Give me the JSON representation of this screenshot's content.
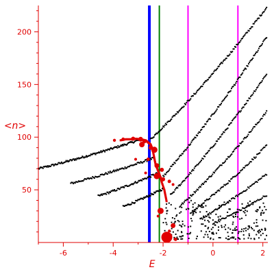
{
  "chart_data": {
    "type": "scatter",
    "title": "",
    "xlabel": "E",
    "ylabel": "<n>",
    "xlim": [
      -7.0,
      2.2
    ],
    "ylim": [
      0,
      225
    ],
    "x_ticks": [
      -6,
      -4,
      -2,
      0,
      2
    ],
    "y_ticks": [
      50,
      100,
      150,
      200
    ],
    "grid": false,
    "colors": {
      "axes": "#e00000",
      "black_points": "#000000",
      "red_points": "#e00000",
      "line_blue": "#0000ff",
      "line_green": "#008000",
      "line_magenta": "#ff00ff"
    },
    "vertical_lines": [
      {
        "x": -2.55,
        "color": "#0000ff",
        "width": 4
      },
      {
        "x": -2.15,
        "color": "#008000",
        "width": 2
      },
      {
        "x": -1.0,
        "color": "#ff00ff",
        "width": 2
      },
      {
        "x": 1.0,
        "color": "#ff00ff",
        "width": 2
      }
    ],
    "black_bands": [
      {
        "x0": -7.0,
        "y0": 70,
        "x1": -3.0,
        "y1": 97,
        "n": 130
      },
      {
        "x0": -5.7,
        "y0": 56,
        "x1": -2.4,
        "y1": 80,
        "n": 95
      },
      {
        "x0": -4.6,
        "y0": 44,
        "x1": -2.2,
        "y1": 66,
        "n": 75
      },
      {
        "x0": -3.6,
        "y0": 34,
        "x1": -2.0,
        "y1": 51,
        "n": 55
      },
      {
        "x0": -2.5,
        "y0": 98,
        "x1": 2.15,
        "y1": 223,
        "n": 140
      },
      {
        "x0": -2.1,
        "y0": 60,
        "x1": 2.15,
        "y1": 195,
        "n": 125
      },
      {
        "x0": -1.7,
        "y0": 45,
        "x1": 2.15,
        "y1": 160,
        "n": 110
      },
      {
        "x0": -1.3,
        "y0": 35,
        "x1": 2.15,
        "y1": 124,
        "n": 95
      },
      {
        "x0": -0.9,
        "y0": 28,
        "x1": 2.15,
        "y1": 92,
        "n": 80
      },
      {
        "x0": -0.5,
        "y0": 22,
        "x1": 2.15,
        "y1": 65,
        "n": 65
      },
      {
        "x0": 0.0,
        "y0": 18,
        "x1": 2.15,
        "y1": 45,
        "n": 50
      }
    ],
    "black_scatter": {
      "x_range": [
        -2.0,
        2.15
      ],
      "y_range": [
        3,
        40
      ],
      "n": 260
    },
    "red_arc": [
      [
        -3.7,
        97
      ],
      [
        -3.5,
        98
      ],
      [
        -3.3,
        98
      ],
      [
        -3.1,
        98.5
      ],
      [
        -2.9,
        98
      ],
      [
        -2.7,
        97
      ],
      [
        -2.6,
        95
      ],
      [
        -2.5,
        93
      ],
      [
        -2.45,
        90
      ],
      [
        -2.4,
        86
      ],
      [
        -2.35,
        80
      ],
      [
        -2.3,
        74
      ],
      [
        -2.2,
        68
      ],
      [
        -2.1,
        62
      ],
      [
        -2.05,
        57
      ],
      [
        -1.95,
        50
      ],
      [
        -1.9,
        44
      ],
      [
        -1.85,
        38
      ]
    ],
    "red_points": [
      {
        "x": -3.95,
        "y": 97,
        "r": 2.2
      },
      {
        "x": -3.6,
        "y": 98,
        "r": 2.5
      },
      {
        "x": -3.2,
        "y": 98.5,
        "r": 3
      },
      {
        "x": -2.9,
        "y": 98,
        "r": 3.5
      },
      {
        "x": -2.75,
        "y": 96,
        "r": 3
      },
      {
        "x": -2.85,
        "y": 93,
        "r": 4
      },
      {
        "x": -2.5,
        "y": 90,
        "r": 3
      },
      {
        "x": -2.35,
        "y": 88,
        "r": 4.5
      },
      {
        "x": -3.1,
        "y": 79,
        "r": 2
      },
      {
        "x": -2.6,
        "y": 79,
        "r": 2.5
      },
      {
        "x": -2.25,
        "y": 73,
        "r": 3.5
      },
      {
        "x": -2.05,
        "y": 69,
        "r": 3
      },
      {
        "x": -2.7,
        "y": 66,
        "r": 2
      },
      {
        "x": -2.25,
        "y": 63,
        "r": 4.5
      },
      {
        "x": -2.0,
        "y": 60,
        "r": 3
      },
      {
        "x": -1.75,
        "y": 58,
        "r": 2.5
      },
      {
        "x": -1.6,
        "y": 55,
        "r": 2
      },
      {
        "x": -2.1,
        "y": 30,
        "r": 4.5
      },
      {
        "x": -1.6,
        "y": 16,
        "r": 3.5
      },
      {
        "x": -1.85,
        "y": 5,
        "r": 8
      },
      {
        "x": -1.5,
        "y": 3,
        "r": 2.5
      },
      {
        "x": -1.75,
        "y": 11,
        "r": 2
      },
      {
        "x": -2.2,
        "y": 25,
        "r": 2
      }
    ]
  }
}
